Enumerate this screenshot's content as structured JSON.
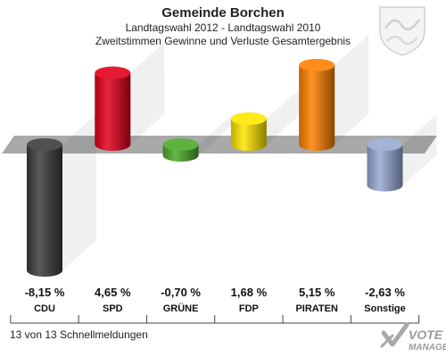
{
  "header": {
    "title": "Gemeinde Borchen",
    "subtitle1": "Landtagswahl 2012 - Landtagswahl 2010",
    "subtitle2": "Zweitstimmen Gewinne und Verluste Gesamtergebnis"
  },
  "footer": {
    "note": "13 von 13 Schnellmeldungen"
  },
  "logo": {
    "line1": "VOTE",
    "line2": "MANAGER"
  },
  "chart_data": {
    "type": "bar",
    "categories": [
      "CDU",
      "SPD",
      "GRÜNE",
      "FDP",
      "PIRATEN",
      "Sonstige"
    ],
    "values": [
      -8.15,
      4.65,
      -0.7,
      1.68,
      5.15,
      -2.63
    ],
    "value_labels": [
      "-8,15 %",
      "4,65 %",
      "-0,70 %",
      "1,68 %",
      "5,15 %",
      "-2,63 %"
    ],
    "colors": [
      "#3c3c3c",
      "#e3001b",
      "#4caa2a",
      "#ffe600",
      "#ff8000",
      "#98a9d4"
    ],
    "ylim": [
      -8.5,
      6
    ],
    "grid": false
  }
}
